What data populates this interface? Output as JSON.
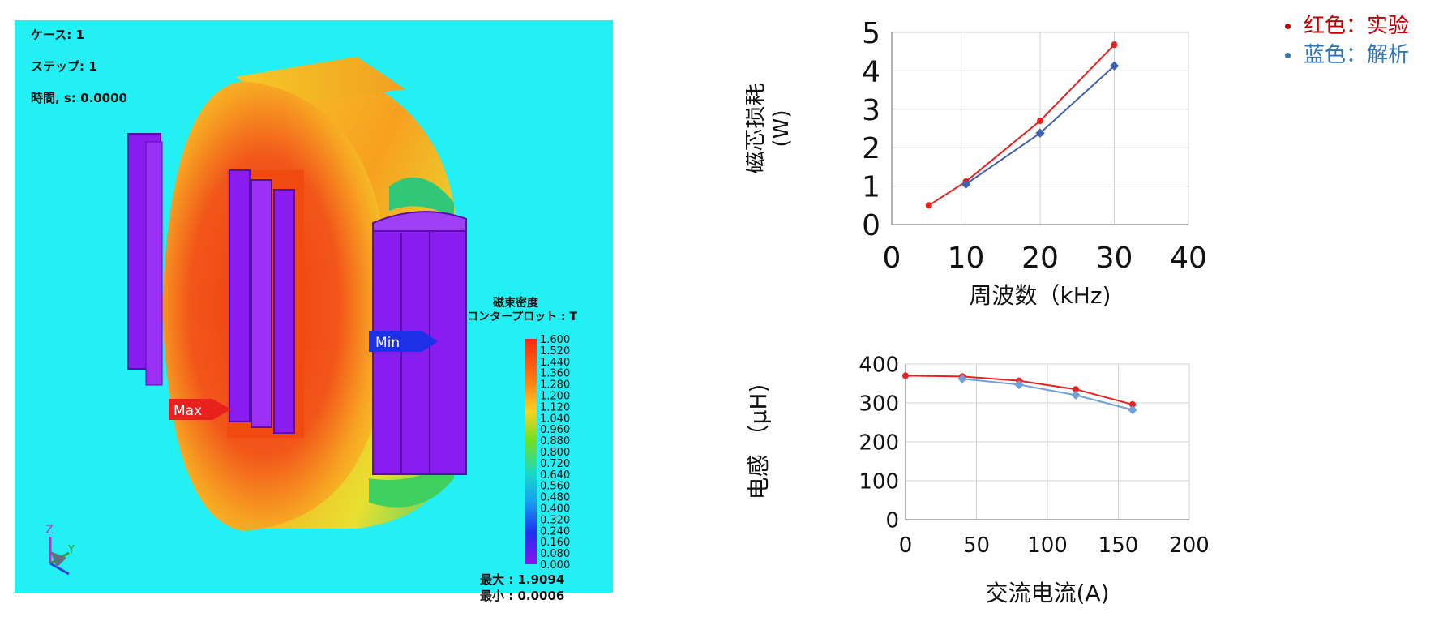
{
  "simulation": {
    "case_label": "ケース: 1",
    "step_label": "ステップ: 1",
    "time_label": "時間, s: 0.0000",
    "colorbar_title1": "磁束密度",
    "colorbar_title2": "コンタープロット : T",
    "colorbar_ticks": [
      "1.600",
      "1.520",
      "1.440",
      "1.360",
      "1.280",
      "1.200",
      "1.120",
      "1.040",
      "0.960",
      "0.880",
      "0.800",
      "0.720",
      "0.640",
      "0.560",
      "0.480",
      "0.400",
      "0.320",
      "0.240",
      "0.160",
      "0.080",
      "0.000"
    ],
    "max_marker": "Max",
    "min_marker": "Min",
    "stat_max": "最大 : 1.9094",
    "stat_min": "最小 : 0.0006",
    "axis_z": "Z",
    "axis_y": "Y",
    "colors": {
      "background": "#22f0f4",
      "hot": "#f04a10",
      "warm": "#f6a020",
      "cool": "#8a1cf0",
      "max_arrow": "#e8201e",
      "min_arrow": "#1c30e8"
    }
  },
  "legend": {
    "experiment": "红色：实验",
    "analysis": "蓝色：解析",
    "experiment_color": "#c00000",
    "analysis_color": "#2e75b6"
  },
  "chart_data": [
    {
      "type": "line",
      "x": [
        5,
        10,
        20,
        30
      ],
      "series": [
        {
          "values": [
            0.5,
            1.12,
            2.7,
            4.68
          ],
          "color": "#e8201e"
        },
        {
          "values": [
            null,
            1.05,
            2.38,
            4.13
          ],
          "color": "#3f5fb0"
        }
      ],
      "xlabel": "周波数（kHz)",
      "ylabel": "磁芯损耗",
      "ylabel_unit": "(W)",
      "xlim": [
        0,
        40
      ],
      "ylim": [
        0,
        5
      ],
      "xticks": [
        0,
        10,
        20,
        30,
        40
      ],
      "yticks": [
        0,
        1,
        2,
        3,
        4,
        5
      ],
      "grid": true
    },
    {
      "type": "line",
      "x": [
        0,
        40,
        80,
        120,
        160
      ],
      "series": [
        {
          "values": [
            370,
            368,
            357,
            335,
            296
          ],
          "color": "#e8201e"
        },
        {
          "values": [
            null,
            362,
            347,
            320,
            282
          ],
          "color": "#6fa0dc"
        }
      ],
      "xlabel": "交流电流(A)",
      "ylabel": "电感 （μH)",
      "xlim": [
        0,
        200
      ],
      "ylim": [
        0,
        400
      ],
      "xticks": [
        0,
        50,
        100,
        150,
        200
      ],
      "yticks": [
        0,
        100,
        200,
        300,
        400
      ],
      "grid": true
    }
  ]
}
